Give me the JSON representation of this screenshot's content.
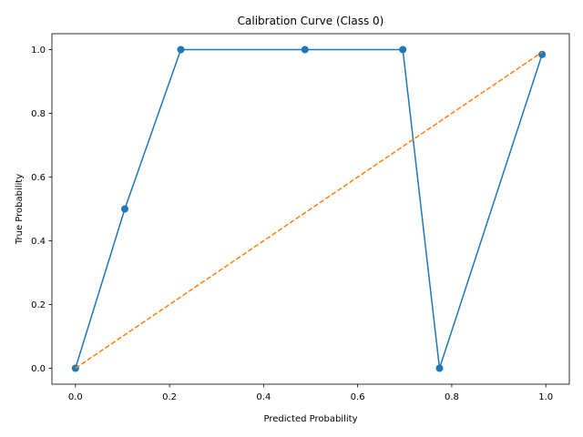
{
  "chart_data": {
    "type": "line",
    "title": "Calibration Curve (Class 0)",
    "xlabel": "Predicted Probability",
    "ylabel": "True Probability",
    "xlim": [
      -0.05,
      1.05
    ],
    "ylim": [
      -0.05,
      1.05
    ],
    "xticks": [
      "0.0",
      "0.2",
      "0.4",
      "0.6",
      "0.8",
      "1.0"
    ],
    "yticks": [
      "0.0",
      "0.2",
      "0.4",
      "0.6",
      "0.8",
      "1.0"
    ],
    "grid": false,
    "series": [
      {
        "style": "solid-with-markers",
        "color": "#1f77b4",
        "x": [
          0.0,
          0.105,
          0.224,
          0.488,
          0.696,
          0.774,
          0.992
        ],
        "y": [
          0.0,
          0.5,
          1.0,
          1.0,
          1.0,
          0.0,
          0.985
        ]
      },
      {
        "style": "dashed",
        "color": "#ff7f0e",
        "x": [
          0.0,
          0.992
        ],
        "y": [
          0.0,
          0.992
        ]
      }
    ]
  }
}
